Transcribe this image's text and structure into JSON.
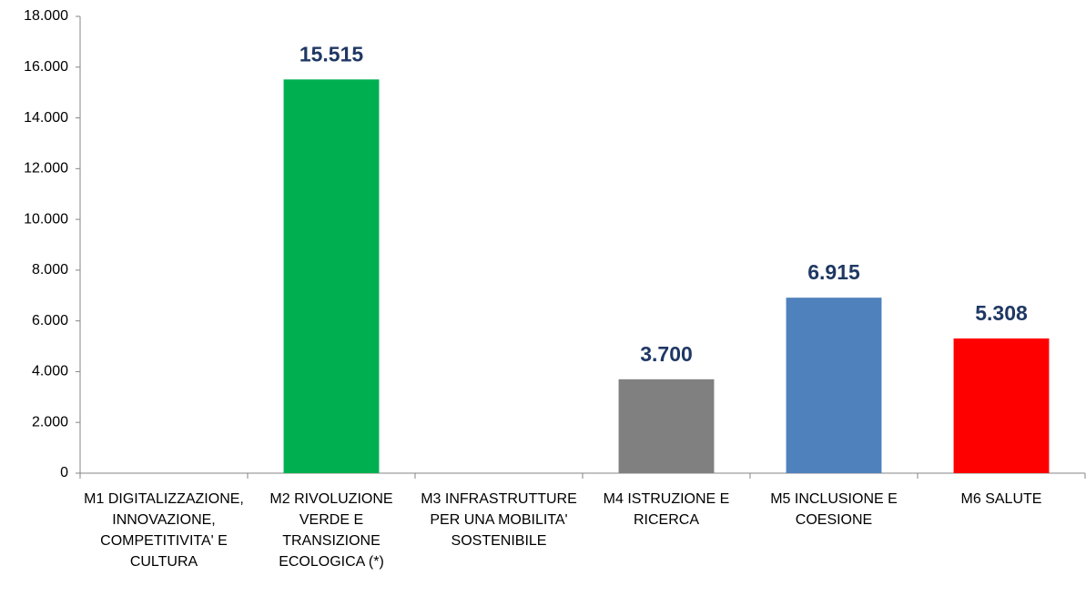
{
  "chart_data": {
    "type": "bar",
    "categories": [
      "M1 DIGITALIZZAZIONE, INNOVAZIONE, COMPETITIVITA' E CULTURA",
      "M2 RIVOLUZIONE VERDE E TRANSIZIONE ECOLOGICA (*)",
      "M3 INFRASTRUTTURE PER UNA MOBILITA' SOSTENIBILE",
      "M4 ISTRUZIONE E RICERCA",
      "M5 INCLUSIONE E COESIONE",
      "M6 SALUTE"
    ],
    "values": [
      null,
      15515,
      null,
      3700,
      6915,
      5308
    ],
    "value_labels": [
      null,
      "15.515",
      null,
      "3.700",
      "6.915",
      "5.308"
    ],
    "colors": [
      null,
      "#00b050",
      null,
      "#808080",
      "#4f81bd",
      "#ff0000"
    ],
    "ylim": [
      0,
      18000
    ],
    "yticks": [
      0,
      {
        "value": 2000,
        "label": "2.000"
      },
      {
        "value": 4000,
        "label": "4.000"
      },
      {
        "value": 6000,
        "label": "6.000"
      },
      {
        "value": 8000,
        "label": "8.000"
      },
      {
        "value": 10000,
        "label": "10.000"
      },
      {
        "value": 12000,
        "label": "12.000"
      },
      {
        "value": 14000,
        "label": "14.000"
      },
      {
        "value": 16000,
        "label": "16.000"
      },
      {
        "value": 18000,
        "label": "18.000"
      }
    ],
    "grid": false
  }
}
